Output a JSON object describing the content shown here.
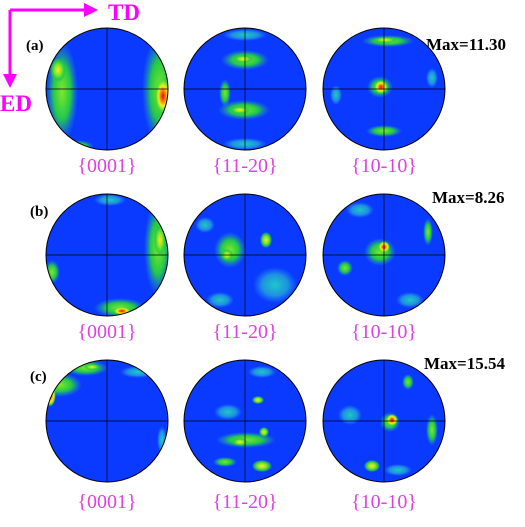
{
  "axes": {
    "horizontal": "TD",
    "vertical": "ED",
    "color": "#ff00ff"
  },
  "pole_figure_labels": [
    "{0001}",
    "{11-20}",
    "{10-10}"
  ],
  "label_color": "#e040e0",
  "rows": [
    {
      "label": "(a)",
      "max": "Max=11.30"
    },
    {
      "label": "(b)",
      "max": "Max=8.26"
    },
    {
      "label": "(c)",
      "max": "Max=15.54"
    }
  ],
  "colors": {
    "background": "#0a3aff",
    "low": "#1e78ff",
    "mid": "#22c84a",
    "high_green": "#7fe82a",
    "yellow": "#ffe81a",
    "orange": "#ff8a10",
    "max": "#e01010"
  }
}
